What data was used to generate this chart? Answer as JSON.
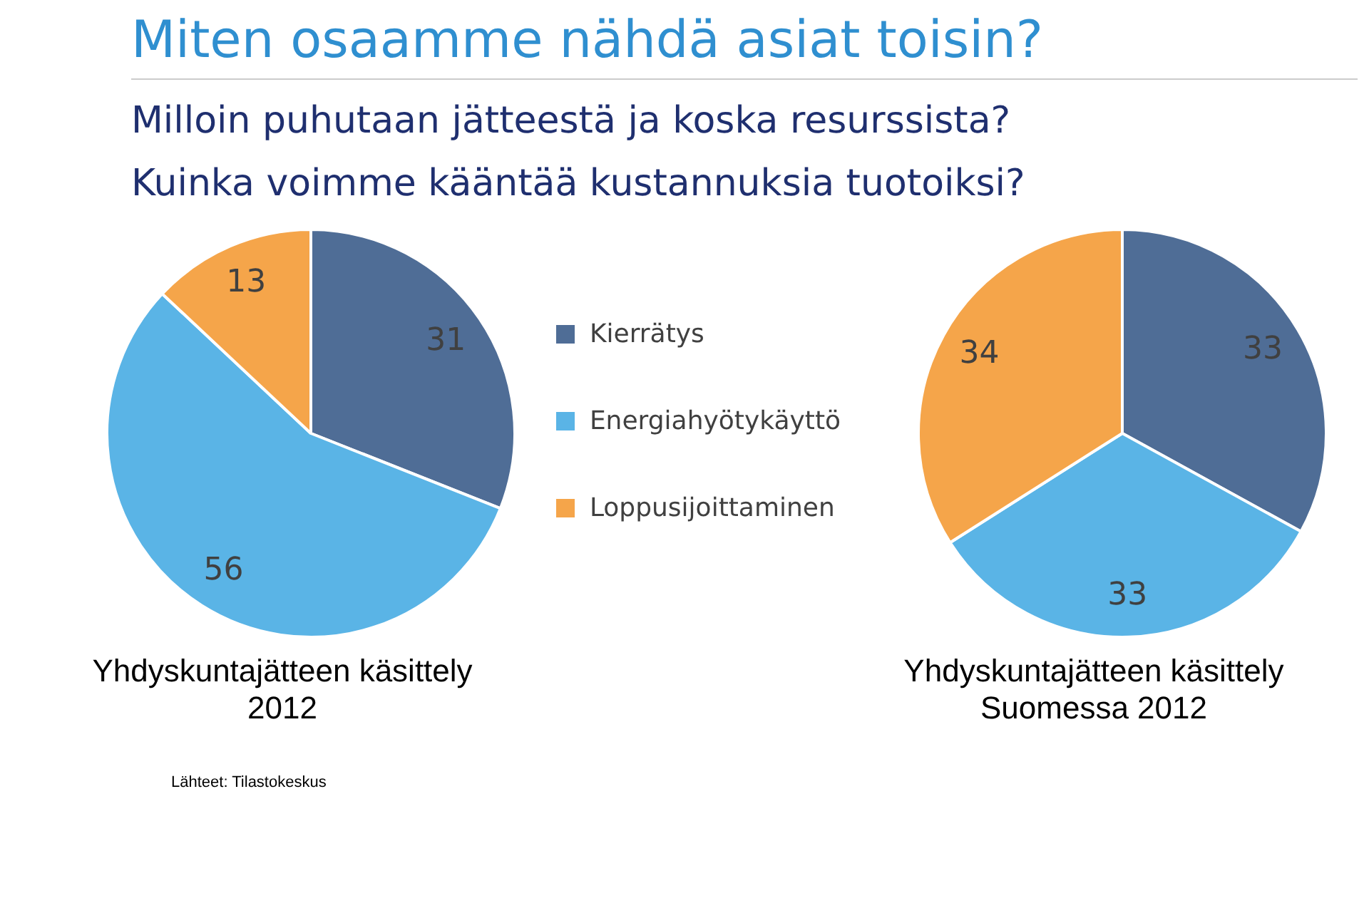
{
  "chart_data": [
    {
      "type": "pie",
      "title": "Yhdyskuntajätteen käsittely 2012",
      "categories": [
        "Kierrätys",
        "Energiahyötykäyttö",
        "Loppusijoittaminen"
      ],
      "values": [
        31,
        56,
        13
      ],
      "colors": [
        "#4f6d96",
        "#5ab4e6",
        "#f5a54a"
      ],
      "data_labels": true,
      "legend": "right",
      "annotations": [
        "Miten osaamme nähdä asiat toisin?",
        "Milloin  puhutaan jätteestä ja koska resurssista?",
        "Kuinka voimme kääntää kustannuksia tuotoiksi?",
        "Lähteet: Tilastokeskus"
      ]
    },
    {
      "type": "pie",
      "title": "Yhdyskuntajätteen käsittely Suomessa 2012",
      "categories": [
        null,
        null,
        null
      ],
      "values": [
        33,
        33,
        34
      ],
      "colors": [
        "#4f6d96",
        "#5ab4e6",
        "#f5a54a"
      ],
      "data_labels": true
    }
  ]
}
